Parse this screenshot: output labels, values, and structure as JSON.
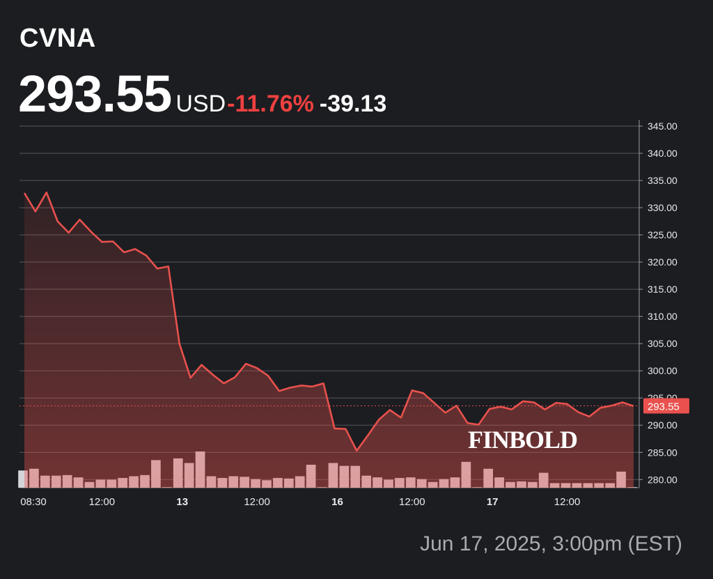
{
  "header": {
    "ticker": "CVNA",
    "price": "293.55",
    "currency": "USD",
    "change_percent": "-11.76%",
    "change_value": "-39.13"
  },
  "footer": {
    "timestamp": "Jun 17, 2025, 3:00pm (EST)"
  },
  "colors": {
    "background": "#1c1d21",
    "line": "#e8514d",
    "negative": "#f0413f",
    "volume": "#d3d5da",
    "grid": "#55575d",
    "last_price_tag": "#e8514d"
  },
  "watermark": "FINBOLD",
  "chart_data": {
    "type": "line",
    "title": "",
    "xlabel": "",
    "ylabel": "",
    "ylim": [
      278.5,
      345
    ],
    "yticks": [
      "345.00",
      "340.00",
      "335.00",
      "330.00",
      "325.00",
      "320.00",
      "315.00",
      "310.00",
      "305.00",
      "300.00",
      "295.00",
      "290.00",
      "285.00",
      "280.00"
    ],
    "xtick_labels": [
      {
        "label": "08:30",
        "bold": false,
        "index": 0
      },
      {
        "label": "12:00",
        "bold": false,
        "index": 7
      },
      {
        "label": "13",
        "bold": true,
        "index": 14
      },
      {
        "label": "12:00",
        "bold": false,
        "index": 21
      },
      {
        "label": "16",
        "bold": true,
        "index": 28
      },
      {
        "label": "12:00",
        "bold": false,
        "index": 35
      },
      {
        "label": "17",
        "bold": true,
        "index": 42
      },
      {
        "label": "12:00",
        "bold": false,
        "index": 49
      }
    ],
    "grid": true,
    "last_price_label": "293.55",
    "last_price": 293.55,
    "price": [
      332.7,
      329.3,
      332.8,
      327.5,
      325.4,
      327.8,
      325.6,
      323.7,
      323.8,
      321.8,
      322.4,
      321.2,
      318.8,
      319.2,
      305.0,
      298.7,
      301.1,
      299.3,
      297.7,
      298.8,
      301.3,
      300.5,
      299.1,
      296.3,
      296.9,
      297.3,
      297.1,
      297.7,
      289.4,
      289.3,
      285.3,
      288.1,
      291.0,
      292.8,
      291.4,
      296.4,
      295.9,
      294.1,
      292.3,
      293.6,
      290.4,
      290.1,
      293.0,
      293.4,
      292.9,
      294.4,
      294.2,
      292.9,
      294.1,
      293.9,
      292.4,
      291.6,
      293.2,
      293.6,
      294.2,
      293.5
    ],
    "volume": [
      3,
      3.3,
      2.1,
      2.1,
      2.2,
      1.8,
      1,
      1.4,
      1.4,
      1.7,
      2,
      2.2,
      4.8,
      0.1,
      5.1,
      4.3,
      6.3,
      2,
      1.7,
      2,
      1.9,
      1.5,
      1.3,
      1.7,
      1.6,
      2,
      4,
      0.1,
      4.3,
      3.8,
      3.8,
      2.1,
      1.8,
      1.4,
      1.7,
      1.8,
      1.5,
      1,
      1.5,
      1.8,
      4.5,
      0.1,
      3.3,
      1.8,
      1,
      1.1,
      1,
      2.6,
      0.8,
      0.8,
      0.8,
      0.8,
      0.8,
      0.8,
      2.8,
      0.1
    ]
  }
}
